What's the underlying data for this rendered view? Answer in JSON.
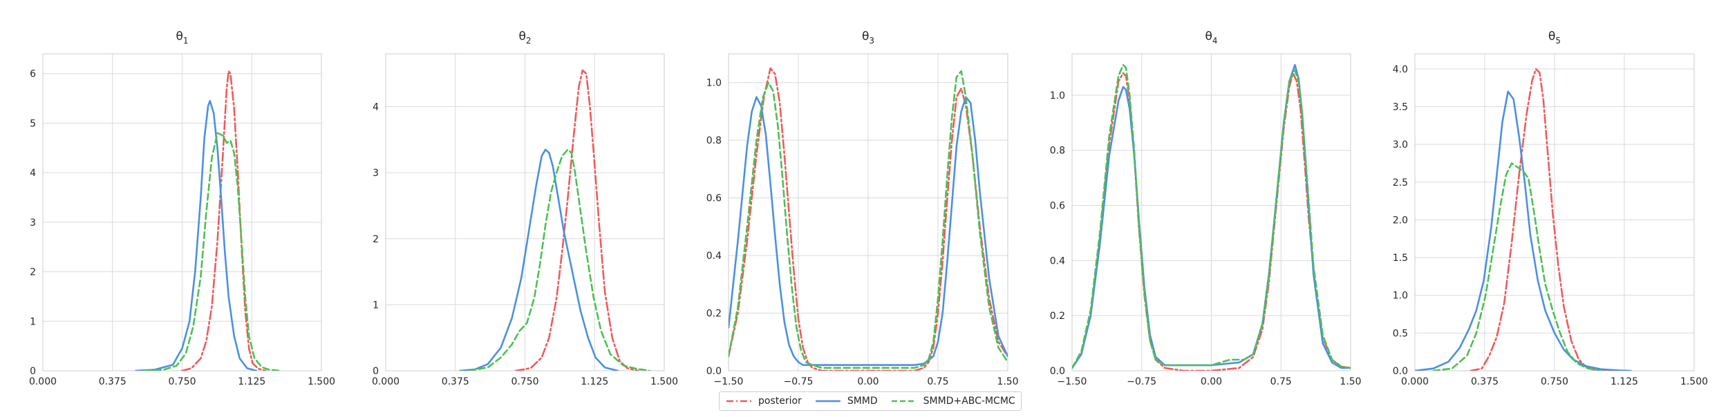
{
  "chart_data": [
    {
      "type": "line",
      "title": "θ",
      "subscript": "1",
      "xlim": [
        0,
        1.5
      ],
      "ylim": [
        0,
        6.4
      ],
      "xticks": [
        "0.000",
        "0.375",
        "0.750",
        "1.125",
        "1.500"
      ],
      "yticks": [
        "0",
        "1",
        "2",
        "3",
        "4",
        "5",
        "6"
      ],
      "grid": true,
      "series": [
        {
          "name": "posterior",
          "x": [
            0.75,
            0.8,
            0.85,
            0.88,
            0.91,
            0.94,
            0.97,
            0.99,
            1.0,
            1.01,
            1.03,
            1.05,
            1.07,
            1.09,
            1.11,
            1.13,
            1.16,
            1.2
          ],
          "y": [
            0,
            0.05,
            0.25,
            0.6,
            1.3,
            2.6,
            4.4,
            5.7,
            6.05,
            6.0,
            5.3,
            4.0,
            2.5,
            1.2,
            0.45,
            0.15,
            0.04,
            0
          ]
        },
        {
          "name": "SMMD",
          "x": [
            0.5,
            0.6,
            0.7,
            0.75,
            0.79,
            0.82,
            0.85,
            0.87,
            0.89,
            0.9,
            0.92,
            0.94,
            0.96,
            0.98,
            1.0,
            1.03,
            1.06,
            1.1,
            1.15
          ],
          "y": [
            0,
            0.02,
            0.12,
            0.45,
            1.0,
            2.0,
            3.5,
            4.7,
            5.35,
            5.45,
            5.2,
            4.5,
            3.5,
            2.4,
            1.5,
            0.7,
            0.25,
            0.05,
            0
          ]
        },
        {
          "name": "SMMD+ABC-MCMC",
          "x": [
            0.55,
            0.65,
            0.72,
            0.77,
            0.81,
            0.85,
            0.88,
            0.91,
            0.94,
            0.97,
            0.99,
            1.01,
            1.03,
            1.05,
            1.07,
            1.09,
            1.11,
            1.14,
            1.18,
            1.22,
            1.28
          ],
          "y": [
            0,
            0.02,
            0.1,
            0.35,
            0.9,
            1.9,
            3.2,
            4.3,
            4.8,
            4.75,
            4.6,
            4.65,
            4.4,
            3.7,
            2.6,
            1.5,
            0.7,
            0.25,
            0.07,
            0.02,
            0
          ]
        }
      ]
    },
    {
      "type": "line",
      "title": "θ",
      "subscript": "2",
      "xlim": [
        0,
        1.5
      ],
      "ylim": [
        0,
        4.8
      ],
      "xticks": [
        "0.000",
        "0.375",
        "0.750",
        "1.125",
        "1.500"
      ],
      "yticks": [
        "0",
        "1",
        "2",
        "3",
        "4"
      ],
      "grid": true,
      "series": [
        {
          "name": "posterior",
          "x": [
            0.7,
            0.78,
            0.84,
            0.88,
            0.92,
            0.95,
            0.98,
            1.01,
            1.04,
            1.06,
            1.08,
            1.1,
            1.12,
            1.15,
            1.18,
            1.22,
            1.26,
            1.3,
            1.36
          ],
          "y": [
            0,
            0.04,
            0.2,
            0.5,
            1.1,
            1.8,
            2.6,
            3.5,
            4.3,
            4.55,
            4.5,
            4.0,
            3.3,
            2.2,
            1.2,
            0.5,
            0.15,
            0.04,
            0
          ]
        },
        {
          "name": "SMMD",
          "x": [
            0.4,
            0.48,
            0.55,
            0.62,
            0.68,
            0.73,
            0.77,
            0.81,
            0.84,
            0.86,
            0.88,
            0.9,
            0.93,
            0.96,
            0.99,
            1.02,
            1.05,
            1.09,
            1.13,
            1.18,
            1.25
          ],
          "y": [
            0,
            0.02,
            0.1,
            0.35,
            0.8,
            1.4,
            2.1,
            2.8,
            3.25,
            3.35,
            3.3,
            3.1,
            2.6,
            2.1,
            1.7,
            1.3,
            0.9,
            0.5,
            0.2,
            0.05,
            0
          ]
        },
        {
          "name": "SMMD+ABC-MCMC",
          "x": [
            0.45,
            0.55,
            0.62,
            0.68,
            0.72,
            0.76,
            0.8,
            0.83,
            0.86,
            0.89,
            0.92,
            0.95,
            0.98,
            1.0,
            1.02,
            1.05,
            1.08,
            1.12,
            1.16,
            1.21,
            1.28,
            1.35,
            1.42
          ],
          "y": [
            0,
            0.05,
            0.2,
            0.4,
            0.6,
            0.72,
            1.1,
            1.6,
            2.2,
            2.7,
            3.0,
            3.25,
            3.35,
            3.3,
            3.0,
            2.4,
            1.8,
            1.1,
            0.6,
            0.25,
            0.08,
            0.03,
            0
          ]
        }
      ]
    },
    {
      "type": "line",
      "title": "θ",
      "subscript": "3",
      "xlim": [
        -1.5,
        1.5
      ],
      "ylim": [
        0,
        1.1
      ],
      "xticks": [
        "−1.50",
        "−0.75",
        "0.00",
        "0.75",
        "1.50"
      ],
      "yticks": [
        "0.0",
        "0.2",
        "0.4",
        "0.6",
        "0.8",
        "1.0"
      ],
      "grid": true,
      "series": [
        {
          "name": "posterior",
          "x": [
            -1.5,
            -1.4,
            -1.3,
            -1.2,
            -1.12,
            -1.05,
            -1.0,
            -0.95,
            -0.9,
            -0.85,
            -0.8,
            -0.75,
            -0.7,
            -0.65,
            -0.6,
            -0.5,
            -0.3,
            0,
            0.3,
            0.5,
            0.6,
            0.65,
            0.7,
            0.75,
            0.8,
            0.85,
            0.9,
            0.95,
            1.0,
            1.05,
            1.12,
            1.2,
            1.3,
            1.4,
            1.5
          ],
          "y": [
            0.05,
            0.2,
            0.45,
            0.75,
            0.95,
            1.05,
            1.03,
            0.93,
            0.75,
            0.55,
            0.35,
            0.18,
            0.08,
            0.03,
            0.01,
            0,
            0,
            0,
            0,
            0,
            0.01,
            0.03,
            0.08,
            0.2,
            0.38,
            0.6,
            0.8,
            0.95,
            0.98,
            0.92,
            0.75,
            0.5,
            0.25,
            0.1,
            0.05
          ]
        },
        {
          "name": "SMMD",
          "x": [
            -1.5,
            -1.4,
            -1.3,
            -1.25,
            -1.2,
            -1.15,
            -1.1,
            -1.05,
            -1.0,
            -0.95,
            -0.9,
            -0.85,
            -0.8,
            -0.75,
            -0.7,
            -0.6,
            -0.5,
            -0.3,
            0,
            0.3,
            0.5,
            0.6,
            0.7,
            0.75,
            0.8,
            0.85,
            0.9,
            0.95,
            1.0,
            1.05,
            1.1,
            1.15,
            1.2,
            1.3,
            1.4,
            1.5
          ],
          "y": [
            0.15,
            0.45,
            0.78,
            0.9,
            0.95,
            0.92,
            0.82,
            0.65,
            0.47,
            0.3,
            0.17,
            0.09,
            0.05,
            0.03,
            0.02,
            0.02,
            0.02,
            0.02,
            0.02,
            0.02,
            0.02,
            0.025,
            0.05,
            0.1,
            0.2,
            0.38,
            0.58,
            0.78,
            0.9,
            0.95,
            0.93,
            0.8,
            0.62,
            0.32,
            0.12,
            0.05
          ]
        },
        {
          "name": "SMMD+ABC-MCMC",
          "x": [
            -1.5,
            -1.4,
            -1.3,
            -1.2,
            -1.13,
            -1.07,
            -1.02,
            -0.97,
            -0.92,
            -0.87,
            -0.82,
            -0.77,
            -0.72,
            -0.67,
            -0.6,
            -0.5,
            -0.3,
            0,
            0.3,
            0.5,
            0.6,
            0.65,
            0.7,
            0.75,
            0.8,
            0.85,
            0.9,
            0.95,
            1.0,
            1.05,
            1.12,
            1.2,
            1.3,
            1.4,
            1.5
          ],
          "y": [
            0.05,
            0.22,
            0.5,
            0.8,
            0.95,
            1.0,
            0.97,
            0.85,
            0.67,
            0.47,
            0.29,
            0.15,
            0.07,
            0.03,
            0.02,
            0.01,
            0.01,
            0.01,
            0.01,
            0.01,
            0.02,
            0.04,
            0.1,
            0.25,
            0.45,
            0.68,
            0.88,
            1.02,
            1.04,
            0.95,
            0.75,
            0.48,
            0.22,
            0.08,
            0.03
          ]
        }
      ]
    },
    {
      "type": "line",
      "title": "θ",
      "subscript": "4",
      "xlim": [
        -1.5,
        1.5
      ],
      "ylim": [
        0,
        1.15
      ],
      "xticks": [
        "−1.50",
        "−0.75",
        "0.00",
        "0.75",
        "1.50"
      ],
      "yticks": [
        "0.0",
        "0.2",
        "0.4",
        "0.6",
        "0.8",
        "1.0"
      ],
      "grid": true,
      "series": [
        {
          "name": "posterior",
          "x": [
            -1.5,
            -1.4,
            -1.3,
            -1.2,
            -1.1,
            -1.0,
            -0.95,
            -0.92,
            -0.88,
            -0.83,
            -0.78,
            -0.72,
            -0.66,
            -0.6,
            -0.5,
            -0.3,
            0,
            0.3,
            0.45,
            0.55,
            0.62,
            0.7,
            0.78,
            0.84,
            0.88,
            0.92,
            0.96,
            1.0,
            1.05,
            1.12,
            1.2,
            1.3,
            1.4,
            1.5
          ],
          "y": [
            0.01,
            0.06,
            0.2,
            0.48,
            0.82,
            1.05,
            1.08,
            1.07,
            0.98,
            0.78,
            0.52,
            0.27,
            0.11,
            0.04,
            0.01,
            0,
            0,
            0.01,
            0.05,
            0.15,
            0.32,
            0.6,
            0.88,
            1.03,
            1.08,
            1.05,
            0.95,
            0.78,
            0.55,
            0.3,
            0.12,
            0.04,
            0.015,
            0.01
          ]
        },
        {
          "name": "SMMD",
          "x": [
            -1.5,
            -1.4,
            -1.3,
            -1.2,
            -1.1,
            -1.0,
            -0.95,
            -0.92,
            -0.88,
            -0.83,
            -0.78,
            -0.72,
            -0.66,
            -0.6,
            -0.5,
            -0.3,
            0,
            0.3,
            0.45,
            0.55,
            0.62,
            0.7,
            0.78,
            0.84,
            0.9,
            0.94,
            0.98,
            1.03,
            1.1,
            1.2,
            1.3,
            1.4,
            1.5
          ],
          "y": [
            0.01,
            0.06,
            0.2,
            0.46,
            0.78,
            0.98,
            1.03,
            1.02,
            0.95,
            0.78,
            0.55,
            0.3,
            0.13,
            0.05,
            0.02,
            0.02,
            0.02,
            0.03,
            0.06,
            0.17,
            0.35,
            0.62,
            0.9,
            1.05,
            1.11,
            1.06,
            0.93,
            0.68,
            0.35,
            0.1,
            0.03,
            0.01,
            0.01
          ]
        },
        {
          "name": "SMMD+ABC-MCMC",
          "x": [
            -1.5,
            -1.4,
            -1.3,
            -1.2,
            -1.1,
            -1.0,
            -0.95,
            -0.92,
            -0.88,
            -0.83,
            -0.78,
            -0.72,
            -0.66,
            -0.6,
            -0.5,
            -0.3,
            0,
            0.2,
            0.35,
            0.45,
            0.55,
            0.62,
            0.7,
            0.78,
            0.84,
            0.9,
            0.94,
            0.98,
            1.03,
            1.1,
            1.2,
            1.3,
            1.4,
            1.5
          ],
          "y": [
            0.01,
            0.07,
            0.22,
            0.5,
            0.85,
            1.07,
            1.11,
            1.1,
            1.0,
            0.8,
            0.53,
            0.28,
            0.11,
            0.04,
            0.02,
            0.02,
            0.02,
            0.04,
            0.04,
            0.06,
            0.17,
            0.34,
            0.62,
            0.9,
            1.05,
            1.09,
            1.05,
            0.93,
            0.7,
            0.38,
            0.13,
            0.04,
            0.015,
            0.01
          ]
        }
      ]
    },
    {
      "type": "line",
      "title": "θ",
      "subscript": "5",
      "xlim": [
        0,
        1.5
      ],
      "ylim": [
        0,
        4.2
      ],
      "xticks": [
        "0.000",
        "0.375",
        "0.750",
        "1.125",
        "1.500"
      ],
      "yticks": [
        "0.0",
        "0.5",
        "1.0",
        "1.5",
        "2.0",
        "2.5",
        "3.0",
        "3.5",
        "4.0"
      ],
      "grid": true,
      "series": [
        {
          "name": "posterior",
          "x": [
            0.3,
            0.36,
            0.4,
            0.44,
            0.48,
            0.52,
            0.56,
            0.6,
            0.63,
            0.65,
            0.67,
            0.69,
            0.71,
            0.74,
            0.77,
            0.8,
            0.84,
            0.88,
            0.92,
            0.97,
            1.05
          ],
          "y": [
            0,
            0.03,
            0.2,
            0.45,
            0.9,
            1.7,
            2.6,
            3.4,
            3.85,
            4.0,
            3.95,
            3.6,
            3.0,
            2.1,
            1.4,
            0.85,
            0.4,
            0.15,
            0.05,
            0.01,
            0
          ]
        },
        {
          "name": "SMMD",
          "x": [
            0.0,
            0.1,
            0.18,
            0.24,
            0.29,
            0.33,
            0.37,
            0.41,
            0.44,
            0.47,
            0.5,
            0.53,
            0.56,
            0.59,
            0.62,
            0.66,
            0.7,
            0.75,
            0.8,
            0.85,
            0.92,
            1.0,
            1.1,
            1.16
          ],
          "y": [
            0,
            0.03,
            0.12,
            0.3,
            0.55,
            0.8,
            1.2,
            1.9,
            2.6,
            3.3,
            3.7,
            3.6,
            3.1,
            2.5,
            1.8,
            1.2,
            0.8,
            0.5,
            0.28,
            0.15,
            0.06,
            0.02,
            0.005,
            0
          ]
        },
        {
          "name": "SMMD+ABC-MCMC",
          "x": [
            0.1,
            0.2,
            0.28,
            0.33,
            0.38,
            0.42,
            0.46,
            0.49,
            0.52,
            0.55,
            0.58,
            0.61,
            0.64,
            0.67,
            0.7,
            0.74,
            0.78,
            0.82,
            0.87,
            0.93,
            1.0
          ],
          "y": [
            0,
            0.03,
            0.2,
            0.5,
            1.0,
            1.6,
            2.2,
            2.6,
            2.75,
            2.7,
            2.65,
            2.55,
            2.1,
            1.6,
            1.15,
            0.8,
            0.5,
            0.25,
            0.1,
            0.03,
            0
          ]
        }
      ]
    }
  ],
  "legend": {
    "position": "bottom-center",
    "items": [
      {
        "label": "posterior",
        "color": "#f05a5a",
        "style": "dashdot"
      },
      {
        "label": "SMMD",
        "color": "#4a90e2",
        "style": "solid"
      },
      {
        "label": "SMMD+ABC-MCMC",
        "color": "#4cc053",
        "style": "dashed"
      }
    ]
  },
  "colors": {
    "posterior": "#f05a5a",
    "SMMD": "#4a90e2",
    "SMMD+ABC-MCMC": "#4cc053",
    "grid": "#d9d9d9",
    "axis": "#cccccc"
  }
}
